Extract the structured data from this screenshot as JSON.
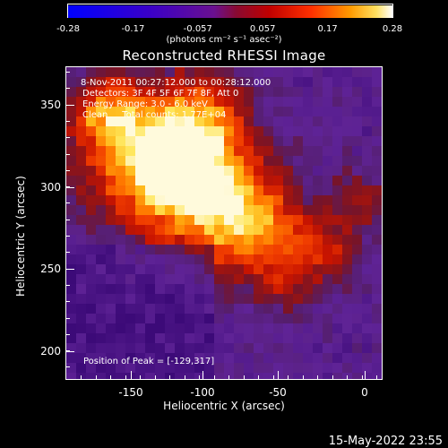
{
  "colorbar": {
    "ticks": [
      "-0.28",
      "-0.17",
      "-0.057",
      "0.057",
      "0.17",
      "0.28"
    ],
    "units_label": "(photons cm⁻² s⁻¹ asec⁻²)"
  },
  "title": "Reconstructed RHESSI Image",
  "info": {
    "line1": "8-Nov-2011 00:27:12.000 to 00:28:12.000",
    "line2": "Detectors: 3F 4F 5F 6F 7F 8F, Att 0",
    "line3": "Energy Range: 3.0 - 6.0 keV",
    "line4": "Clean     Total counts: 1.77E+04"
  },
  "peak_text": "Position of Peak = [-129,317]",
  "x_axis": {
    "label": "Heliocentric X (arcsec)",
    "ticks": [
      "-150",
      "-100",
      "-50",
      "0"
    ]
  },
  "y_axis": {
    "label": "Heliocentric Y (arcsec)",
    "ticks": [
      "350",
      "300",
      "250",
      "200"
    ]
  },
  "datestamp": "15-May-2022 23:55"
}
